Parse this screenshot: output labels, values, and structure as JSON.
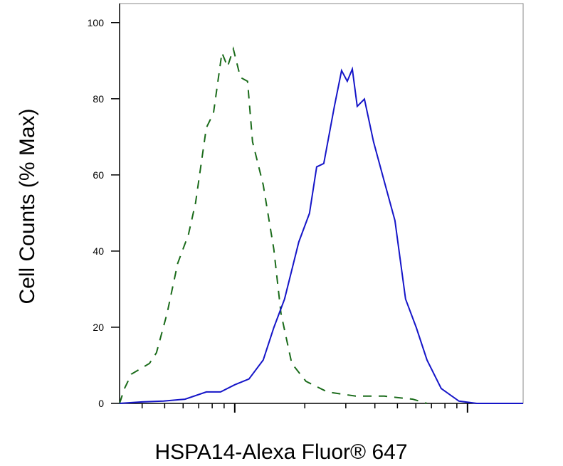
{
  "chart_data": {
    "type": "line",
    "x_label": "HSPA14-Alexa Fluor® 647",
    "y_label": "Cell Counts (% Max)",
    "x_scale": "log",
    "xlim": [
      320,
      17340
    ],
    "xticks": [
      400,
      500,
      600,
      700,
      800,
      900,
      1000,
      2000,
      3000,
      4000,
      5000,
      6000,
      7000,
      8000,
      9000,
      10000
    ],
    "ylim": [
      0,
      105
    ],
    "yticks": [
      0,
      20,
      40,
      60,
      80,
      100
    ],
    "series": [
      {
        "color": "#1a6b1a",
        "dash": true,
        "x": [
          320,
          336,
          360,
          430,
          461,
          512,
          569,
          632,
          679,
          755,
          810,
          881,
          931,
          986,
          1058,
          1135,
          1192,
          1325,
          1472,
          1580,
          1758,
          2023,
          2500,
          3313,
          4389,
          5817,
          6699
        ],
        "values": [
          0,
          3.9,
          7.7,
          10.5,
          13.3,
          23.6,
          36.8,
          44.3,
          52.7,
          72.4,
          76.2,
          92.1,
          88.4,
          93.1,
          85.6,
          84.6,
          68.7,
          57.4,
          40.5,
          23.6,
          10.5,
          5.8,
          3.0,
          1.9,
          1.9,
          1.1,
          0
        ]
      },
      {
        "color": "#1515c8",
        "dash": false,
        "x": [
          320,
          400,
          494,
          611,
          755,
          869,
          1000,
          1151,
          1325,
          1472,
          1637,
          1884,
          2094,
          2249,
          2412,
          2680,
          2877,
          3043,
          3199,
          3360,
          3606,
          3947,
          4389,
          4877,
          5420,
          6026,
          6699,
          7709,
          9187,
          10960,
          17340
        ],
        "values": [
          0,
          0.4,
          0.6,
          1.1,
          3.0,
          3.0,
          4.9,
          6.4,
          11.4,
          19.9,
          27.4,
          42.4,
          49.9,
          62.1,
          63.0,
          78.0,
          87.4,
          84.6,
          87.8,
          78.0,
          79.9,
          68.7,
          58.3,
          48.0,
          27.4,
          19.9,
          11.4,
          3.9,
          0.6,
          0,
          0
        ]
      }
    ]
  }
}
